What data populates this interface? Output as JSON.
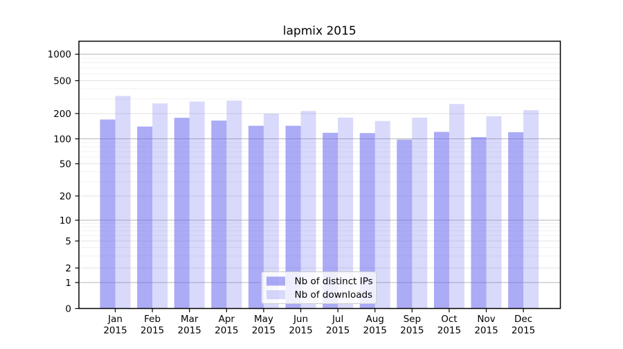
{
  "chart_data": {
    "type": "bar",
    "title": "lapmix 2015",
    "x": {
      "months": [
        "Jan",
        "Feb",
        "Mar",
        "Apr",
        "May",
        "Jun",
        "Jul",
        "Aug",
        "Sep",
        "Oct",
        "Nov",
        "Dec"
      ],
      "year": "2015"
    },
    "series": [
      {
        "name": "Nb of distinct IPs",
        "values": [
          170,
          140,
          178,
          165,
          143,
          143,
          118,
          117,
          98,
          121,
          105,
          120
        ],
        "base_color": "#6666ee",
        "opacity": 0.55
      },
      {
        "name": "Nb of downloads",
        "values": [
          327,
          265,
          279,
          287,
          200,
          215,
          179,
          163,
          179,
          261,
          186,
          220
        ],
        "base_color": "#6666ee",
        "opacity": 0.25
      }
    ],
    "y_axis": {
      "scale": "symlog",
      "ticks": [
        0,
        1,
        2,
        5,
        10,
        20,
        50,
        100,
        200,
        500,
        1000
      ],
      "ylim": [
        0,
        1400
      ]
    },
    "legend": {
      "location": "lower center",
      "entries": [
        "Nb of distinct IPs",
        "Nb of downloads"
      ]
    },
    "grid": true,
    "colors": {
      "bar_base": "#6666ee",
      "grid_major": "#b4b4b4",
      "grid_mid": "#e2e2e2",
      "grid_minor": "#f1f1f1",
      "axis": "#000000",
      "legend_border": "#cccccc",
      "background": "#ffffff"
    }
  }
}
